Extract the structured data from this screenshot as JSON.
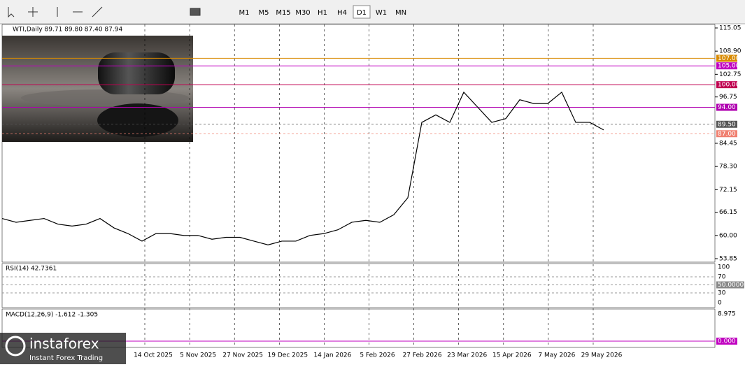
{
  "toolbar": {
    "timeframes": [
      "M1",
      "M5",
      "M15",
      "M30",
      "H1",
      "H4",
      "D1",
      "W1",
      "MN"
    ],
    "active": "D1"
  },
  "chart": {
    "header": "WTI,Daily  89.71 89.80 87.40 87.94",
    "price_labels": [
      "115.05",
      "108.90",
      "102.75",
      "96.75",
      "84.45",
      "78.30",
      "72.15",
      "66.15",
      "60.00",
      "53.85"
    ],
    "levels": [
      {
        "label": "107.00",
        "color": "#d88a00"
      },
      {
        "label": "105.00",
        "color": "#c000c0"
      },
      {
        "label": "100.00",
        "color": "#c00050"
      },
      {
        "label": "94.00",
        "color": "#b000b0"
      },
      {
        "label": "89.50",
        "color": "#555"
      },
      {
        "label": "87.00",
        "color": "#f08070"
      }
    ],
    "dates": [
      "14 Oct 2025",
      "5 Nov 2025",
      "27 Nov 2025",
      "19 Dec 2025",
      "14 Jan 2026",
      "5 Feb 2026",
      "27 Feb 2026",
      "23 Mar 2026",
      "15 Apr 2026",
      "7 May 2026",
      "29 May 2026"
    ],
    "closes": [
      64.5,
      63.5,
      64,
      64.5,
      63,
      62.5,
      63,
      64.5,
      62,
      60.5,
      58.5,
      60.5,
      60.5,
      60,
      60,
      59,
      59.5,
      59.5,
      58.5,
      57.5,
      58.5,
      58.5,
      60,
      60.5,
      61.5,
      63.5,
      64,
      63.5,
      65.5,
      70,
      90,
      92,
      90,
      98,
      94,
      90,
      91,
      96,
      95,
      95,
      98,
      90,
      90,
      88
    ]
  },
  "rsi": {
    "header": "RSI(14) 42.7361",
    "labels": [
      "100",
      "70",
      "50.0000",
      "30",
      "0"
    ]
  },
  "macd": {
    "header": "MACD(12,26,9) -1.612 -1.305",
    "labels": [
      "8.975",
      "0.000"
    ]
  },
  "logo": {
    "name": "instaforex",
    "tagline": "Instant Forex Trading"
  }
}
